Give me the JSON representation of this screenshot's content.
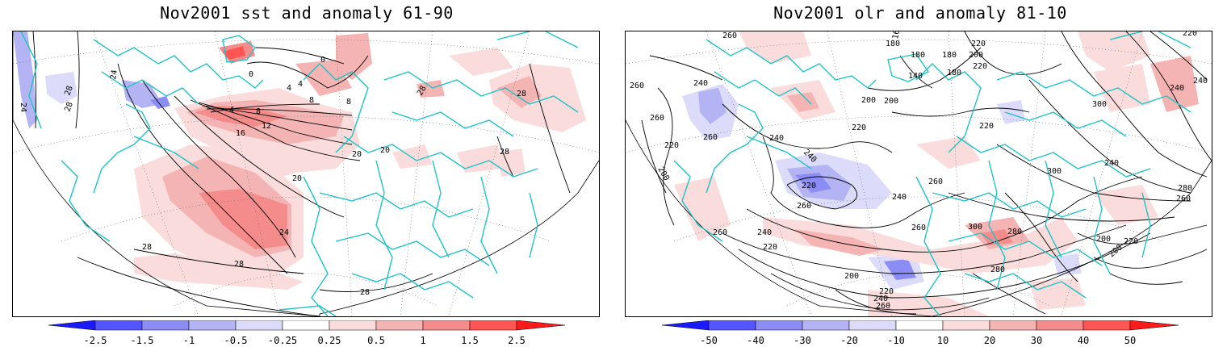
{
  "panels": [
    {
      "id": "sst",
      "title": "Nov2001 sst and anomaly 61-90",
      "contour_labels": [
        "24",
        "28",
        "24",
        "28",
        "0",
        "0",
        "4",
        "4",
        "8",
        "8",
        "12",
        "16",
        "20",
        "20",
        "20",
        "24",
        "28",
        "28",
        "28",
        "28",
        "28",
        "28",
        "8",
        "4"
      ],
      "colorbar_labels": [
        "-2.5",
        "-1.5",
        "-1",
        "-0.5",
        "-0.25",
        "0.25",
        "0.5",
        "1",
        "1.5",
        "2.5"
      ]
    },
    {
      "id": "olr",
      "title": "Nov2001 olr and anomaly 81-10",
      "contour_labels": [
        "260",
        "180",
        "160",
        "220",
        "200",
        "180",
        "180",
        "220",
        "220",
        "260",
        "240",
        "140",
        "180",
        "200",
        "200",
        "240",
        "300",
        "240",
        "260",
        "220",
        "220",
        "200",
        "260",
        "240",
        "240",
        "220",
        "240",
        "220",
        "260",
        "240",
        "260",
        "300",
        "300",
        "280",
        "260",
        "280",
        "260",
        "240",
        "260",
        "220",
        "220",
        "200",
        "200",
        "280",
        "200",
        "220",
        "260",
        "240"
      ],
      "colorbar_labels": [
        "-50",
        "-40",
        "-30",
        "-20",
        "-10",
        "10",
        "20",
        "30",
        "40",
        "50"
      ]
    }
  ],
  "colors": {
    "coastline": "#1fc3c3",
    "neg": [
      "#1a1aff",
      "#5555ff",
      "#8c8cf5",
      "#b4b4f5",
      "#dcdcfa"
    ],
    "pos": [
      "#fadcdc",
      "#f5b4b4",
      "#f58c8c",
      "#ff5555",
      "#ff1a1a"
    ],
    "contour": "#000000"
  }
}
